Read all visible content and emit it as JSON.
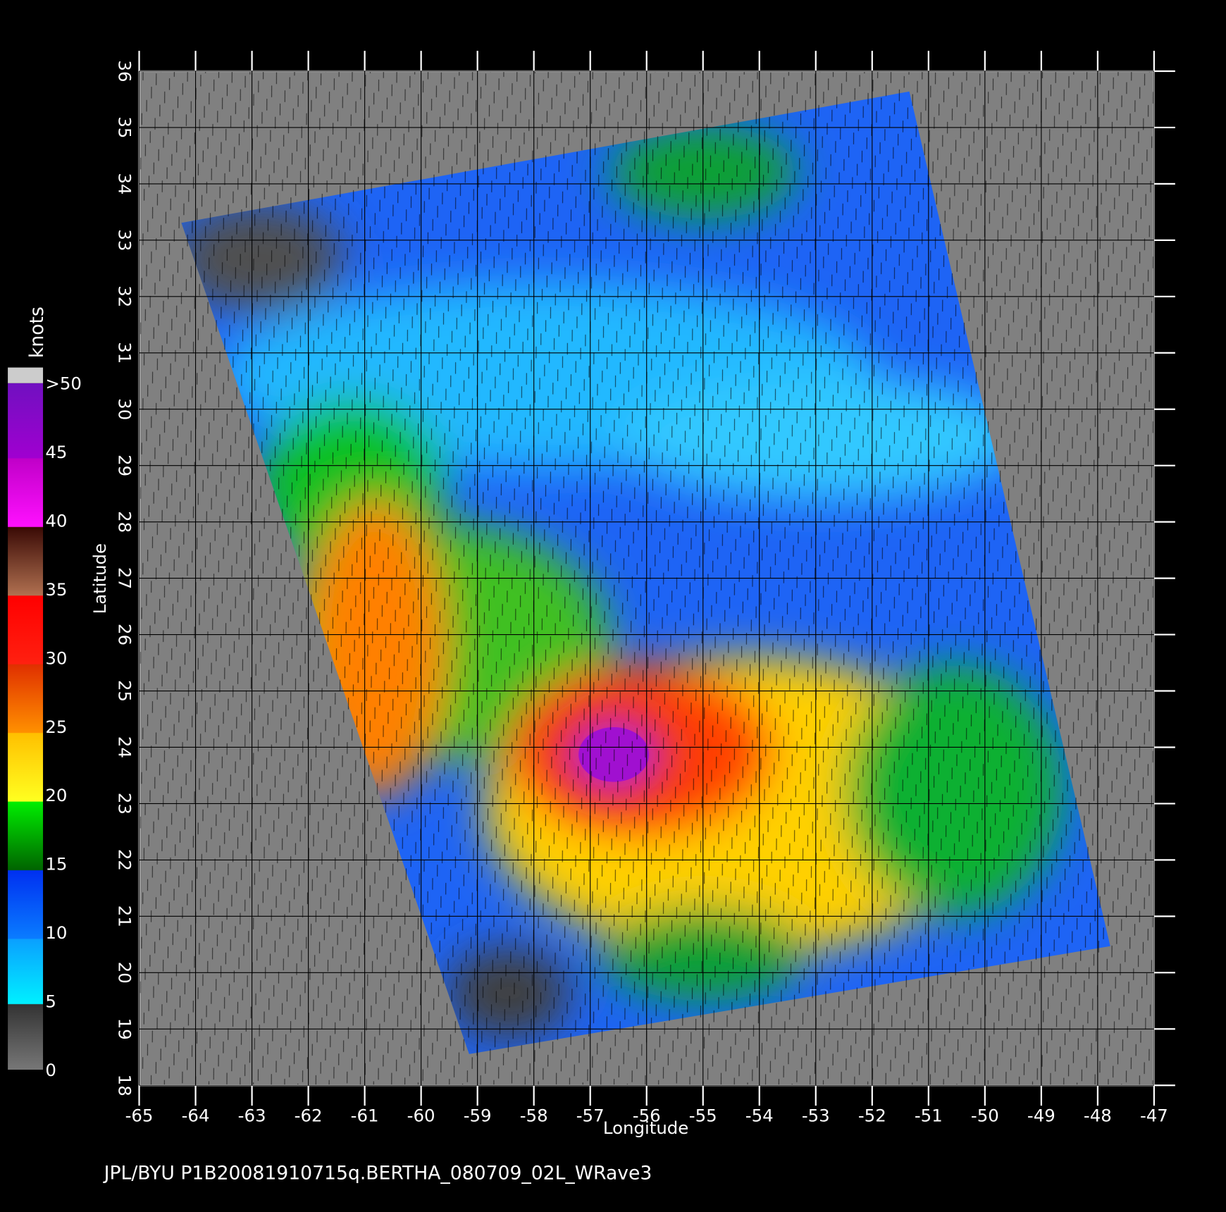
{
  "map": {
    "xlim": [
      -65,
      -47
    ],
    "ylim": [
      18,
      36
    ],
    "xticks": [
      -65,
      -64,
      -63,
      -62,
      -61,
      -60,
      -59,
      -58,
      -57,
      -56,
      -55,
      -54,
      -53,
      -52,
      -51,
      -50,
      -49,
      -48,
      -47
    ],
    "yticks": [
      18,
      19,
      20,
      21,
      22,
      23,
      24,
      25,
      26,
      27,
      28,
      29,
      30,
      31,
      32,
      33,
      34,
      35,
      36
    ],
    "x_label": "Longitude",
    "y_label": "Latitude",
    "colorbar": {
      "title": "knots",
      "ticks": [
        0,
        5,
        10,
        15,
        20,
        25,
        30,
        35,
        40,
        45,
        {
          "value": 50,
          "label": ">50"
        }
      ]
    },
    "footer": "JPL/BYU  P1B20081910715q.BERTHA_080709_02L_WRave3"
  }
}
